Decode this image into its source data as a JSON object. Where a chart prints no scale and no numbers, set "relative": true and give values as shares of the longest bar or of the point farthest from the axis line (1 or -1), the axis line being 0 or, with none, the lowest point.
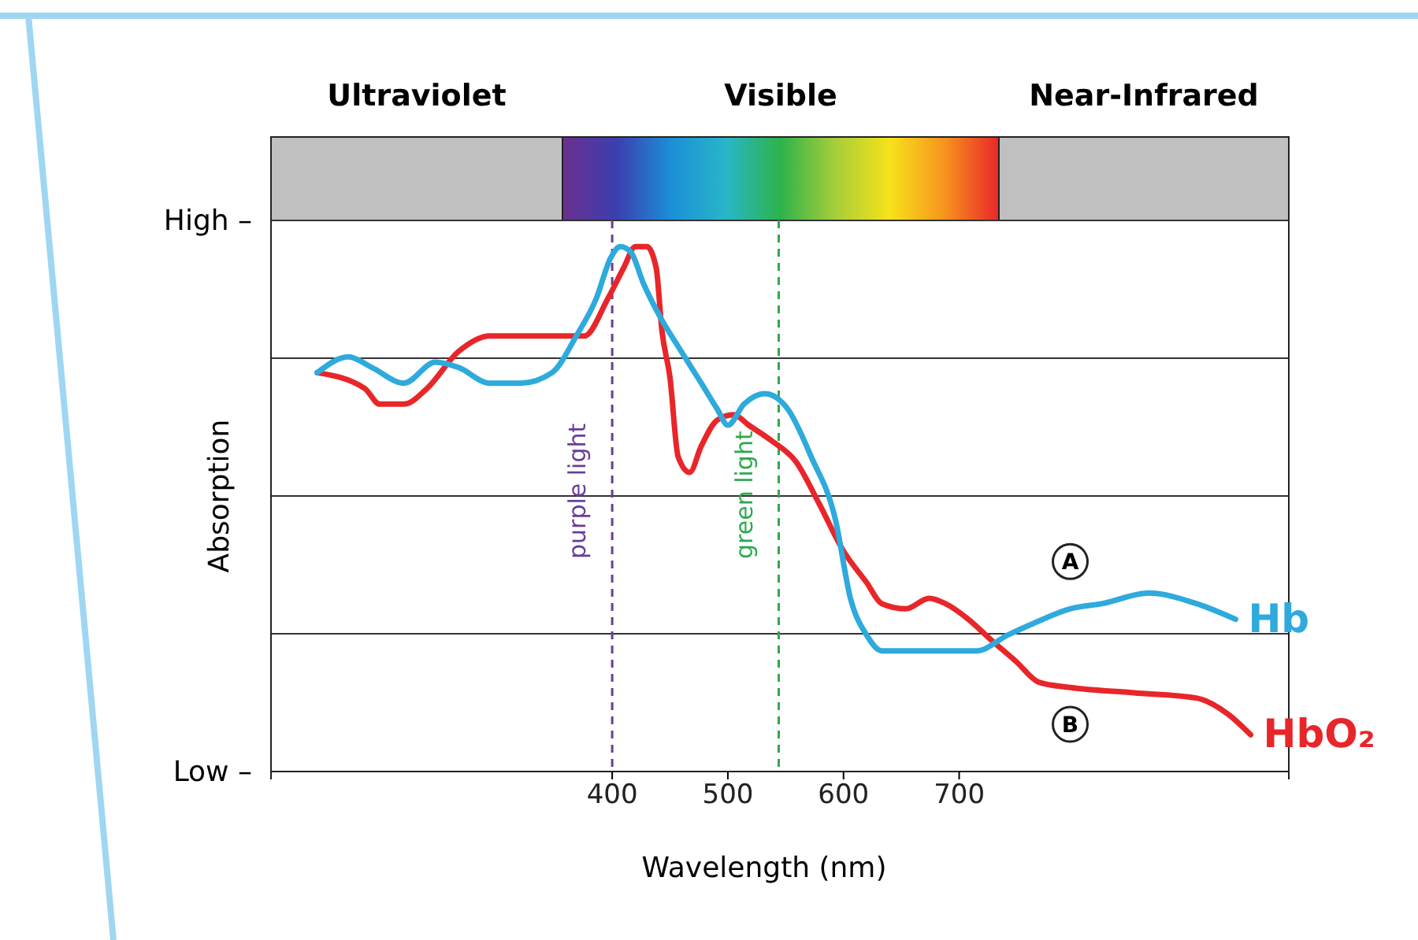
{
  "chart_data": {
    "type": "line",
    "relative": true,
    "xlabel": "Wavelength (nm)",
    "ylabel": "Absorption",
    "xlim": [
      105,
      985
    ],
    "xticks": [
      400,
      500,
      600,
      700
    ],
    "grid": "y",
    "legend": false,
    "ref_lines": [
      {
        "axis": "x",
        "value": 400,
        "label": "purple light",
        "color": "#6b3d96",
        "line_style": "dashed"
      },
      {
        "axis": "x",
        "value": 544,
        "label": "green light",
        "color": "#2ea84f",
        "line_style": "dashed"
      }
    ],
    "annotations": [
      "High –",
      "Low –",
      "Ultraviolet",
      "Visible",
      "Near-Infrared",
      {
        "text": "A",
        "x": 796,
        "y": 0.4
      },
      {
        "text": "B",
        "x": 796,
        "y": 0.09
      }
    ],
    "series": [
      {
        "name": "HbO₂",
        "color": "#e8262a",
        "x": [
          145,
          186,
          199,
          220,
          240,
          267,
          294,
          335,
          376,
          396,
          410,
          420,
          430,
          438,
          443,
          450,
          457,
          467,
          477,
          491,
          505,
          518,
          538,
          559,
          579,
          600,
          620,
          633,
          654,
          674,
          688,
          708,
          728,
          749,
          769,
          796,
          851,
          905,
          932,
          952
        ],
        "values": [
          0.76,
          0.73,
          0.7,
          0.7,
          0.73,
          0.8,
          0.83,
          0.83,
          0.83,
          0.9,
          0.96,
          1.0,
          1.0,
          0.96,
          0.84,
          0.75,
          0.6,
          0.57,
          0.62,
          0.67,
          0.68,
          0.66,
          0.63,
          0.59,
          0.51,
          0.42,
          0.36,
          0.32,
          0.31,
          0.33,
          0.32,
          0.29,
          0.25,
          0.21,
          0.17,
          0.16,
          0.15,
          0.14,
          0.11,
          0.07
        ]
      },
      {
        "name": "Hb",
        "color": "#2eaadc",
        "x": [
          145,
          172,
          192,
          220,
          247,
          267,
          294,
          321,
          348,
          369,
          386,
          399,
          407,
          416,
          427,
          443,
          457,
          477,
          491,
          500,
          514,
          532,
          552,
          572,
          593,
          606,
          620,
          633,
          661,
          688,
          715,
          742,
          762,
          796,
          824,
          864,
          905,
          939
        ],
        "values": [
          0.76,
          0.79,
          0.77,
          0.74,
          0.78,
          0.77,
          0.74,
          0.74,
          0.76,
          0.83,
          0.9,
          0.98,
          1.0,
          0.99,
          0.93,
          0.86,
          0.81,
          0.74,
          0.69,
          0.66,
          0.7,
          0.72,
          0.69,
          0.6,
          0.48,
          0.33,
          0.26,
          0.23,
          0.23,
          0.23,
          0.23,
          0.26,
          0.28,
          0.31,
          0.32,
          0.34,
          0.32,
          0.29
        ]
      }
    ]
  }
}
